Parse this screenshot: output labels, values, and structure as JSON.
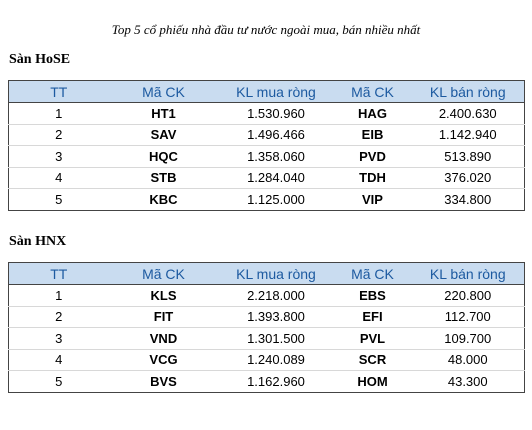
{
  "caption": "Top 5 cổ phiếu nhà đầu tư nước ngoài mua, bán nhiều nhất",
  "columns": [
    "TT",
    "Mã CK",
    "KL mua ròng",
    "Mã CK",
    "KL bán ròng"
  ],
  "hose": {
    "title": "Sàn HoSE",
    "rows": [
      {
        "tt": "1",
        "buy_code": "HT1",
        "buy_vol": "1.530.960",
        "sell_code": "HAG",
        "sell_vol": "2.400.630"
      },
      {
        "tt": "2",
        "buy_code": "SAV",
        "buy_vol": "1.496.466",
        "sell_code": "EIB",
        "sell_vol": "1.142.940"
      },
      {
        "tt": "3",
        "buy_code": "HQC",
        "buy_vol": "1.358.060",
        "sell_code": "PVD",
        "sell_vol": "513.890"
      },
      {
        "tt": "4",
        "buy_code": "STB",
        "buy_vol": "1.284.040",
        "sell_code": "TDH",
        "sell_vol": "376.020"
      },
      {
        "tt": "5",
        "buy_code": "KBC",
        "buy_vol": "1.125.000",
        "sell_code": "VIP",
        "sell_vol": "334.800"
      }
    ]
  },
  "hnx": {
    "title": "Sàn HNX",
    "rows": [
      {
        "tt": "1",
        "buy_code": "KLS",
        "buy_vol": "2.218.000",
        "sell_code": "EBS",
        "sell_vol": "220.800"
      },
      {
        "tt": "2",
        "buy_code": "FIT",
        "buy_vol": "1.393.800",
        "sell_code": "EFI",
        "sell_vol": "112.700"
      },
      {
        "tt": "3",
        "buy_code": "VND",
        "buy_vol": "1.301.500",
        "sell_code": "PVL",
        "sell_vol": "109.700"
      },
      {
        "tt": "4",
        "buy_code": "VCG",
        "buy_vol": "1.240.089",
        "sell_code": "SCR",
        "sell_vol": "48.000"
      },
      {
        "tt": "5",
        "buy_code": "BVS",
        "buy_vol": "1.162.960",
        "sell_code": "HOM",
        "sell_vol": "43.300"
      }
    ]
  }
}
